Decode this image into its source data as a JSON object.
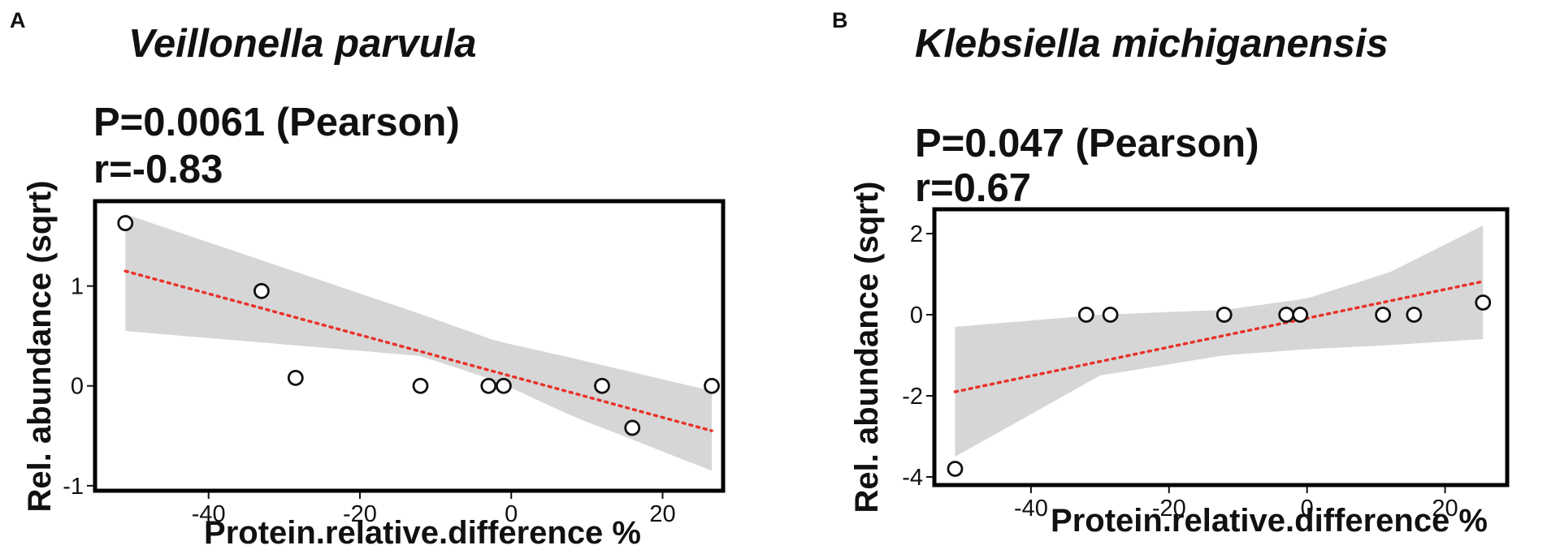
{
  "panels": [
    {
      "letter": "A",
      "species": "Veillonella parvula",
      "stat_p": "P=0.0061 (Pearson)",
      "stat_r": "r=-0.83"
    },
    {
      "letter": "B",
      "species": "Klebsiella michiganensis",
      "stat_p": "P=0.047 (Pearson)",
      "stat_r": "r=0.67"
    }
  ],
  "colors": {
    "band": "#d6d6d6",
    "trend": "#e8322a",
    "frame": "#000000"
  },
  "chart_data": [
    {
      "type": "scatter",
      "title": "Veillonella parvula",
      "xlabel": "Protein.relative.difference %",
      "ylabel": "Rel. abundance (sqrt)",
      "xlim": [
        -55,
        28
      ],
      "ylim": [
        -1.05,
        1.85
      ],
      "xticks": [
        -40,
        -20,
        0,
        20
      ],
      "yticks": [
        -1,
        0,
        1
      ],
      "xtick_labels": [
        "-40",
        "-20",
        "0",
        "20"
      ],
      "ytick_labels": [
        "-1",
        "0",
        "1"
      ],
      "points": [
        {
          "x": -51,
          "y": 1.63
        },
        {
          "x": -33,
          "y": 0.95
        },
        {
          "x": -28.5,
          "y": 0.08
        },
        {
          "x": -12,
          "y": 0.0
        },
        {
          "x": -3,
          "y": 0.0
        },
        {
          "x": -1,
          "y": 0.0
        },
        {
          "x": 12,
          "y": 0.0
        },
        {
          "x": 16,
          "y": -0.42
        },
        {
          "x": 26.5,
          "y": 0.0
        }
      ],
      "trend": {
        "x": [
          -51,
          26.5
        ],
        "y": [
          1.15,
          -0.45
        ]
      },
      "band": {
        "x": [
          -51,
          -12,
          -2,
          8,
          26.5
        ],
        "upper": [
          1.72,
          0.72,
          0.45,
          0.28,
          -0.05
        ],
        "lower": [
          0.55,
          0.3,
          0.05,
          -0.3,
          -0.85
        ]
      }
    },
    {
      "type": "scatter",
      "title": "Klebsiella michiganensis",
      "xlabel": "Protein.relative.difference %",
      "ylabel": "Rel. abundance (sqrt)",
      "xlim": [
        -54,
        29
      ],
      "ylim": [
        -4.2,
        2.6
      ],
      "xticks": [
        -40,
        -20,
        0,
        20
      ],
      "yticks": [
        -4,
        -2,
        0,
        2
      ],
      "xtick_labels": [
        "-40",
        "-20",
        "0",
        "20"
      ],
      "ytick_labels": [
        "-4",
        "-2",
        "0",
        "2"
      ],
      "points": [
        {
          "x": -51,
          "y": -3.8
        },
        {
          "x": -32,
          "y": 0.0
        },
        {
          "x": -28.5,
          "y": 0.0
        },
        {
          "x": -12,
          "y": 0.0
        },
        {
          "x": -3,
          "y": 0.0
        },
        {
          "x": -1,
          "y": 0.0
        },
        {
          "x": 11,
          "y": 0.0
        },
        {
          "x": 15.5,
          "y": 0.0
        },
        {
          "x": 25.5,
          "y": 0.3
        }
      ],
      "trend": {
        "x": [
          -51,
          25.5
        ],
        "y": [
          -1.9,
          0.82
        ]
      },
      "band": {
        "x": [
          -51,
          -30,
          -12,
          0,
          12,
          25.5
        ],
        "upper": [
          -0.3,
          0.0,
          0.12,
          0.4,
          1.05,
          2.2
        ],
        "lower": [
          -3.5,
          -1.5,
          -1.0,
          -0.85,
          -0.75,
          -0.6
        ]
      }
    }
  ]
}
